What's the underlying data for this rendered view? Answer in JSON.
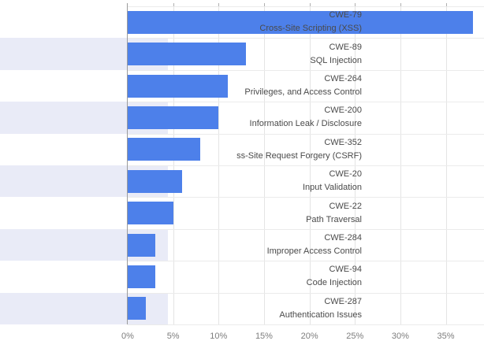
{
  "chart_data": {
    "type": "bar",
    "orientation": "horizontal",
    "title": "",
    "xlabel": "",
    "ylabel": "",
    "categories": [
      {
        "code": "CWE-79",
        "name": "Cross-Site Scripting (XSS)"
      },
      {
        "code": "CWE-89",
        "name": "SQL Injection"
      },
      {
        "code": "CWE-264",
        "name": "Privileges, and Access Control"
      },
      {
        "code": "CWE-200",
        "name": "Information Leak / Disclosure"
      },
      {
        "code": "CWE-352",
        "name": "ss-Site Request Forgery (CSRF)"
      },
      {
        "code": "CWE-20",
        "name": "Input Validation"
      },
      {
        "code": "CWE-22",
        "name": "Path Traversal"
      },
      {
        "code": "CWE-284",
        "name": "Improper Access Control"
      },
      {
        "code": "CWE-94",
        "name": "Code Injection"
      },
      {
        "code": "CWE-287",
        "name": "Authentication Issues"
      }
    ],
    "values": [
      38,
      13,
      11,
      10,
      8,
      6,
      5,
      3,
      3,
      2
    ],
    "unit": "%",
    "xlim": [
      0,
      39.2
    ],
    "xticks": [
      0,
      5,
      10,
      15,
      20,
      25,
      30,
      35
    ],
    "xtick_labels": [
      "0%",
      "5%",
      "10%",
      "15%",
      "20%",
      "25%",
      "30%",
      "35%"
    ],
    "grid": "vertical-gridlines-with-row-separators",
    "legend": "none",
    "row_band_style": "alternating-even-white-odd-lavender",
    "colors": {
      "bar": "#4d80ea",
      "row_band": "#e9ebf7",
      "gridline": "#e4e4e4",
      "row_separator": "#ebebeb",
      "axis_line": "#9b9b9b",
      "tick_mark": "#b0b0b0",
      "label_text": "#4a4a4a",
      "tick_text": "#7d7d7d",
      "background": "#ffffff"
    }
  }
}
